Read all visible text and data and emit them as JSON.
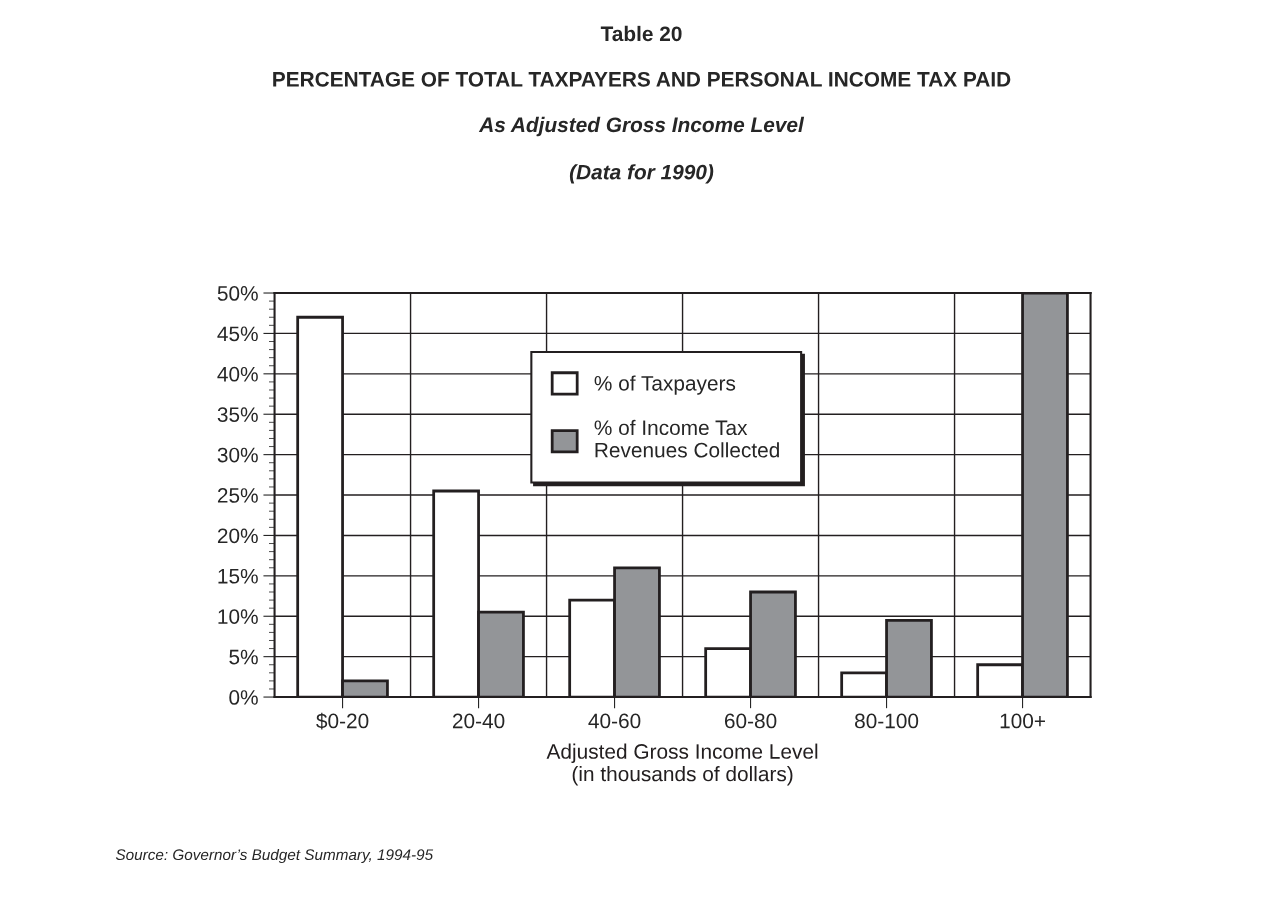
{
  "chart_data": {
    "type": "bar",
    "title": "Table 20",
    "subtitle": "PERCENTAGE OF TOTAL TAXPAYERS AND PERSONAL INCOME TAX PAID",
    "annotations": [
      "As Adjusted Gross Income Level",
      "(Data for 1990)",
      "Source: Governor’s Budget Summary, 1994-95"
    ],
    "xlabel": "Adjusted Gross Income Level\n(in thousands of dollars)",
    "categories": [
      "$0-20",
      "20-40",
      "40-60",
      "60-80",
      "80-100",
      "100+"
    ],
    "series": [
      {
        "name": "% of Taxpayers",
        "color": "#ffffff",
        "values": [
          47,
          25.5,
          12,
          6,
          3,
          4
        ]
      },
      {
        "name": "% of Income Tax\nRevenues Collected",
        "color": "#939598",
        "values": [
          2,
          10.5,
          16,
          13,
          9.5,
          50
        ]
      }
    ],
    "ylim": [
      0,
      50
    ],
    "yticks": [
      {
        "value": 0,
        "label": "0%"
      },
      {
        "value": 5,
        "label": "5%"
      },
      {
        "value": 10,
        "label": "10%"
      },
      {
        "value": 15,
        "label": "15%"
      },
      {
        "value": 20,
        "label": "20%"
      },
      {
        "value": 25,
        "label": "25%"
      },
      {
        "value": 30,
        "label": "30%"
      },
      {
        "value": 35,
        "label": "35%"
      },
      {
        "value": 40,
        "label": "40%"
      },
      {
        "value": 45,
        "label": "45%"
      },
      {
        "value": 50,
        "label": "50%"
      }
    ],
    "grid": true,
    "legend": "top"
  }
}
